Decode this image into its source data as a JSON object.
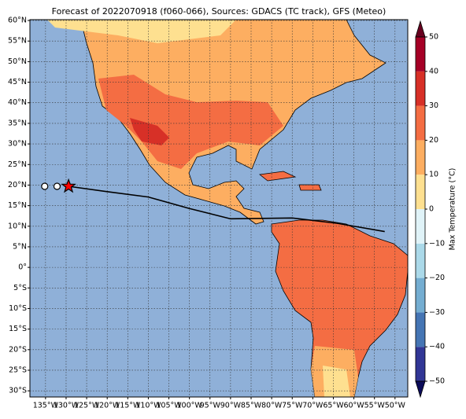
{
  "chart_data": {
    "type": "map",
    "title": "Forecast of 2022070918 (f060-066), Sources: GDACS (TC track), GFS (Meteo)",
    "xlim": [
      -138.8,
      -46.9
    ],
    "ylim": [
      -31.5,
      60.2
    ],
    "xticks": [
      {
        "value": -135,
        "label": "135°W"
      },
      {
        "value": -130,
        "label": "130°W"
      },
      {
        "value": -125,
        "label": "125°W"
      },
      {
        "value": -120,
        "label": "120°W"
      },
      {
        "value": -115,
        "label": "115°W"
      },
      {
        "value": -110,
        "label": "110°W"
      },
      {
        "value": -105,
        "label": "105°W"
      },
      {
        "value": -100,
        "label": "100°W"
      },
      {
        "value": -95,
        "label": "95°W"
      },
      {
        "value": -90,
        "label": "90°W"
      },
      {
        "value": -85,
        "label": "85°W"
      },
      {
        "value": -80,
        "label": "80°W"
      },
      {
        "value": -75,
        "label": "75°W"
      },
      {
        "value": -70,
        "label": "70°W"
      },
      {
        "value": -65,
        "label": "65°W"
      },
      {
        "value": -60,
        "label": "60°W"
      },
      {
        "value": -55,
        "label": "55°W"
      },
      {
        "value": -50,
        "label": "50°W"
      }
    ],
    "yticks": [
      {
        "value": 60,
        "label": "60°N"
      },
      {
        "value": 55,
        "label": "55°N"
      },
      {
        "value": 50,
        "label": "50°N"
      },
      {
        "value": 45,
        "label": "45°N"
      },
      {
        "value": 40,
        "label": "40°N"
      },
      {
        "value": 35,
        "label": "35°N"
      },
      {
        "value": 30,
        "label": "30°N"
      },
      {
        "value": 25,
        "label": "25°N"
      },
      {
        "value": 20,
        "label": "20°N"
      },
      {
        "value": 15,
        "label": "15°N"
      },
      {
        "value": 10,
        "label": "10°N"
      },
      {
        "value": 5,
        "label": "5°N"
      },
      {
        "value": 0,
        "label": "0°"
      },
      {
        "value": -5,
        "label": "5°S"
      },
      {
        "value": -10,
        "label": "10°S"
      },
      {
        "value": -15,
        "label": "15°S"
      },
      {
        "value": -20,
        "label": "20°S"
      },
      {
        "value": -25,
        "label": "25°S"
      },
      {
        "value": -30,
        "label": "30°S"
      }
    ],
    "grid": true,
    "colorbar": {
      "label": "Max Temperature (°C)",
      "lim": [
        -50,
        50
      ],
      "extend": "both",
      "ticks": [
        {
          "value": -50,
          "label": "−50"
        },
        {
          "value": -40,
          "label": "−40"
        },
        {
          "value": -30,
          "label": "−30"
        },
        {
          "value": -20,
          "label": "−20"
        },
        {
          "value": -10,
          "label": "−10"
        },
        0,
        10,
        20,
        30,
        40,
        50
      ],
      "colors": [
        "#313695",
        "#4575b4",
        "#74add1",
        "#abd9e9",
        "#e0f3f8",
        "#fee090",
        "#fdae61",
        "#f46d43",
        "#d73027",
        "#a50026"
      ],
      "extend_colors": [
        "#0c0c5a",
        "#67001f"
      ]
    },
    "track": {
      "color": "#000000",
      "lon": [
        -129.4,
        -120,
        -110,
        -100,
        -90,
        -75,
        -64,
        -52.5
      ],
      "lat": [
        19.7,
        18.4,
        17.1,
        14.3,
        11.8,
        12.0,
        10.7,
        8.7
      ]
    },
    "positions": {
      "lon": [
        -135.2,
        -132.2,
        -129.4
      ],
      "lat": [
        19.7,
        19.7,
        19.7
      ],
      "markers": [
        "circle",
        "circle",
        "star"
      ],
      "colors": [
        "#ffffff",
        "#ffffff",
        "#ff0000"
      ]
    }
  }
}
